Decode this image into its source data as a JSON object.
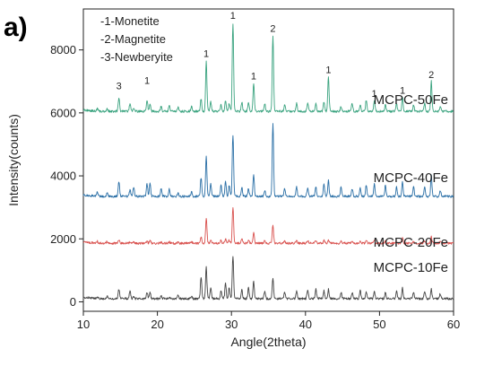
{
  "panel_label": "a)",
  "chart_data": {
    "type": "line",
    "xlabel": "Angle(2theta)",
    "ylabel": "Intensity(counts)",
    "xlim": [
      10,
      60
    ],
    "ylim": [
      -300,
      9300
    ],
    "x_ticks": [
      10,
      20,
      30,
      40,
      50,
      60
    ],
    "y_ticks": [
      0,
      2000,
      4000,
      6000,
      8000
    ],
    "grid": false,
    "legend_placement": "top-left",
    "phase_legend": [
      "-1-Monetite",
      "-2-Magnetite",
      "-3-Newberyite"
    ],
    "peak_x": [
      11.9,
      13.2,
      14.8,
      16.3,
      16.8,
      18.6,
      19.0,
      20.5,
      21.6,
      22.8,
      24.6,
      25.9,
      26.6,
      27.2,
      28.6,
      29.2,
      29.7,
      30.2,
      31.4,
      32.3,
      33.0,
      34.5,
      35.6,
      37.2,
      38.8,
      40.3,
      41.4,
      42.5,
      43.1,
      44.8,
      46.3,
      47.4,
      48.2,
      49.3,
      50.8,
      52.3,
      53.1,
      54.6,
      56.1,
      57.0,
      58.2
    ],
    "series": [
      {
        "name": "MCPC-50Fe",
        "color": "#3aa37f",
        "baseline": 6050,
        "heights": [
          100,
          80,
          400,
          250,
          120,
          350,
          200,
          150,
          200,
          120,
          150,
          400,
          1600,
          300,
          200,
          350,
          250,
          2800,
          300,
          300,
          900,
          250,
          2400,
          200,
          250,
          300,
          250,
          300,
          1100,
          150,
          250,
          200,
          350,
          350,
          200,
          250,
          450,
          200,
          250,
          950,
          150
        ]
      },
      {
        "name": "MCPC-40Fe",
        "color": "#2a6fa6",
        "baseline": 3350,
        "heights": [
          150,
          100,
          450,
          200,
          300,
          400,
          400,
          250,
          250,
          100,
          150,
          600,
          1250,
          400,
          350,
          500,
          350,
          1950,
          300,
          250,
          700,
          200,
          2300,
          250,
          300,
          300,
          300,
          400,
          500,
          300,
          250,
          250,
          350,
          400,
          350,
          300,
          450,
          300,
          300,
          650,
          200
        ]
      },
      {
        "name": "MCPC-20Fe",
        "color": "#d9524f",
        "baseline": 1860,
        "heights": [
          60,
          50,
          100,
          50,
          50,
          50,
          80,
          40,
          40,
          40,
          50,
          200,
          800,
          100,
          100,
          150,
          100,
          1150,
          150,
          100,
          350,
          100,
          600,
          60,
          80,
          100,
          100,
          100,
          120,
          60,
          60,
          80,
          80,
          120,
          60,
          60,
          200,
          60,
          60,
          200,
          50
        ]
      },
      {
        "name": "MCPC-10Fe",
        "color": "#444444",
        "baseline": 100,
        "heights": [
          50,
          80,
          300,
          250,
          50,
          200,
          200,
          100,
          50,
          100,
          80,
          700,
          1000,
          350,
          250,
          500,
          350,
          1350,
          300,
          350,
          550,
          250,
          650,
          200,
          250,
          300,
          300,
          250,
          300,
          200,
          200,
          250,
          200,
          250,
          200,
          250,
          350,
          200,
          250,
          300,
          150
        ]
      }
    ],
    "peak_labels": [
      {
        "text": "3",
        "x": 14.8,
        "y": 6750
      },
      {
        "text": "1",
        "x": 18.6,
        "y": 6920
      },
      {
        "text": "1",
        "x": 26.6,
        "y": 7780
      },
      {
        "text": "1",
        "x": 30.2,
        "y": 8980
      },
      {
        "text": "1",
        "x": 33.0,
        "y": 7060
      },
      {
        "text": "2",
        "x": 35.6,
        "y": 8580
      },
      {
        "text": "1",
        "x": 43.1,
        "y": 7260
      },
      {
        "text": "1",
        "x": 49.3,
        "y": 6510
      },
      {
        "text": "1",
        "x": 53.1,
        "y": 6610
      },
      {
        "text": "2",
        "x": 57.0,
        "y": 7110
      }
    ]
  }
}
